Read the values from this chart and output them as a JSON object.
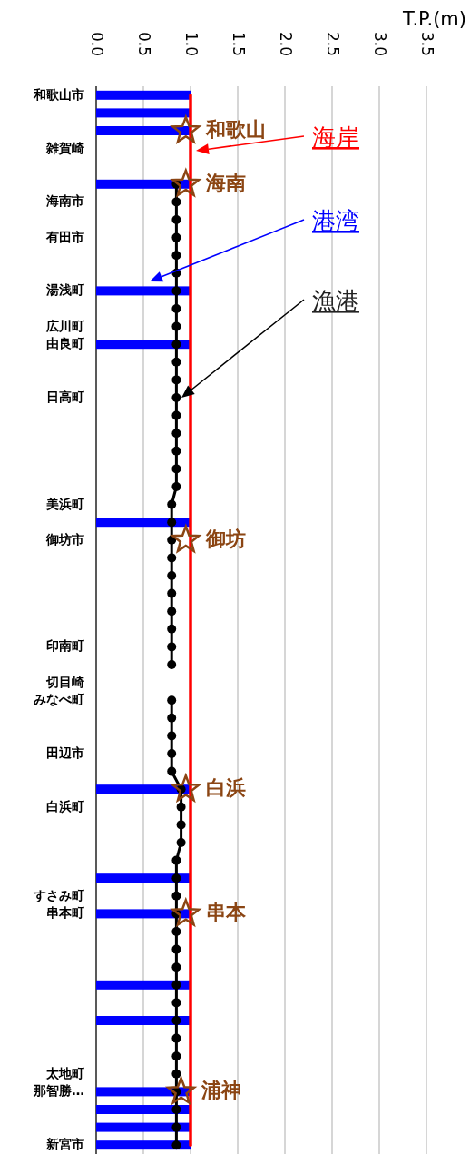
{
  "chart_data": {
    "type": "bar",
    "orientation": "horizontal",
    "xlabel": "T.P.(m)",
    "categories": [
      "和歌山市",
      null,
      null,
      "雑賀崎",
      null,
      null,
      "海南市",
      null,
      "有田市",
      null,
      null,
      "湯浅町",
      null,
      "広川町",
      "由良町",
      null,
      null,
      "日高町",
      null,
      null,
      null,
      null,
      null,
      "美浜町",
      null,
      "御坊市",
      null,
      null,
      null,
      null,
      null,
      "印南町",
      null,
      "切目崎",
      "みなべ町",
      null,
      null,
      "田辺市",
      null,
      null,
      "白浜町",
      null,
      null,
      null,
      null,
      "すさみ町",
      "串本町",
      null,
      null,
      null,
      null,
      null,
      null,
      null,
      null,
      "太地町",
      "那智勝…",
      null,
      null,
      "新宮市"
    ],
    "series": [
      {
        "name": "海岸",
        "type": "line",
        "color": "#ff0000",
        "marker": "none",
        "values": [
          1,
          1,
          1,
          1,
          1,
          1,
          1,
          1,
          1,
          1,
          1,
          1,
          1,
          1,
          1,
          1,
          1,
          1,
          1,
          1,
          1,
          1,
          1,
          1,
          1,
          1,
          1,
          1,
          1,
          1,
          1,
          1,
          1,
          1,
          1,
          1,
          1,
          1,
          1,
          1,
          1,
          1,
          1,
          1,
          1,
          1,
          1,
          1,
          1,
          1,
          1,
          1,
          1,
          1,
          1,
          1,
          1,
          1,
          1,
          1
        ]
      },
      {
        "name": "港湾",
        "color": "#0000ff",
        "values": [
          1,
          1,
          1,
          null,
          null,
          1,
          null,
          null,
          null,
          null,
          null,
          1,
          null,
          null,
          1,
          null,
          null,
          null,
          null,
          null,
          null,
          null,
          null,
          null,
          1,
          null,
          null,
          null,
          null,
          null,
          null,
          null,
          null,
          null,
          null,
          null,
          null,
          null,
          null,
          1,
          null,
          null,
          null,
          null,
          1,
          null,
          1,
          null,
          null,
          null,
          1,
          null,
          1,
          null,
          null,
          null,
          1,
          1,
          1,
          1
        ]
      },
      {
        "name": "漁港",
        "type": "line",
        "color": "#000000",
        "marker": "circle",
        "values": [
          null,
          null,
          null,
          null,
          null,
          0.85,
          0.85,
          0.85,
          0.85,
          0.85,
          0.85,
          0.85,
          0.85,
          0.85,
          0.85,
          0.85,
          0.85,
          0.85,
          0.85,
          0.85,
          0.85,
          0.85,
          0.85,
          0.8,
          0.8,
          0.8,
          0.8,
          0.8,
          0.8,
          0.8,
          0.8,
          0.8,
          0.8,
          null,
          0.8,
          0.8,
          0.8,
          0.8,
          0.8,
          0.9,
          0.9,
          0.9,
          0.9,
          0.85,
          0.85,
          0.85,
          0.85,
          0.85,
          0.85,
          0.85,
          0.85,
          0.85,
          0.85,
          0.85,
          0.85,
          0.85,
          0.85,
          0.85,
          0.85,
          0.85
        ]
      },
      {
        "type": "scatter",
        "color": "#8b4513",
        "marker": "star",
        "values": [
          null,
          null,
          0.95,
          null,
          null,
          0.95,
          null,
          null,
          null,
          null,
          null,
          null,
          null,
          null,
          null,
          null,
          null,
          null,
          null,
          null,
          null,
          null,
          null,
          null,
          null,
          0.95,
          null,
          null,
          null,
          null,
          null,
          null,
          null,
          null,
          null,
          null,
          null,
          null,
          null,
          0.95,
          null,
          null,
          null,
          null,
          null,
          null,
          0.95,
          null,
          null,
          null,
          null,
          null,
          null,
          null,
          null,
          null,
          0.9,
          null,
          null,
          null
        ],
        "value_labels": [
          null,
          null,
          "和歌山",
          null,
          null,
          "海南",
          null,
          null,
          null,
          null,
          null,
          null,
          null,
          null,
          null,
          null,
          null,
          null,
          null,
          null,
          null,
          null,
          null,
          null,
          null,
          "御坊",
          null,
          null,
          null,
          null,
          null,
          null,
          null,
          null,
          null,
          null,
          null,
          null,
          null,
          "白浜",
          null,
          null,
          null,
          null,
          null,
          null,
          "串本",
          null,
          null,
          null,
          null,
          null,
          null,
          null,
          null,
          null,
          "浦神",
          null,
          null,
          null
        ]
      }
    ],
    "xlim": [
      0,
      3.5
    ],
    "xticks": [
      {
        "value": 0,
        "label": "0.0"
      },
      {
        "value": 0.5,
        "label": "0.5"
      },
      {
        "value": 1,
        "label": "1.0"
      },
      {
        "value": 1.5,
        "label": "1.5"
      },
      {
        "value": 2,
        "label": "2.0"
      },
      {
        "value": 2.5,
        "label": "2.5"
      },
      {
        "value": 3,
        "label": "3.0"
      },
      {
        "value": 3.5,
        "label": "3.5"
      }
    ],
    "grid": "x"
  }
}
